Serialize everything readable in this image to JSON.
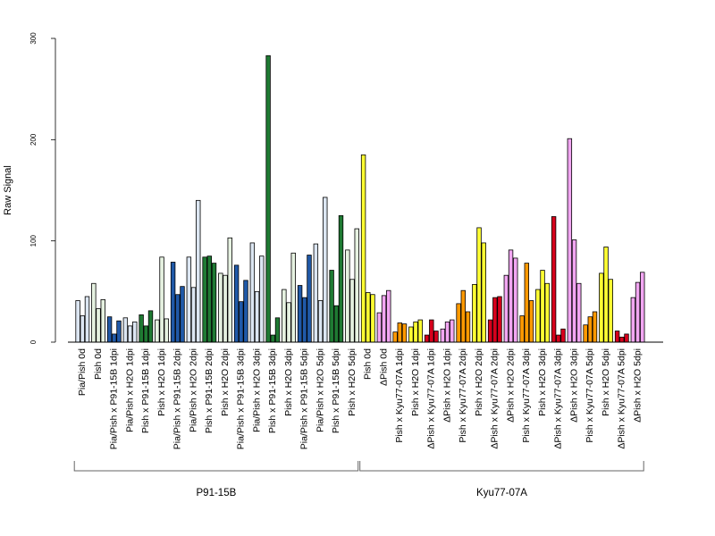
{
  "chart_data": {
    "type": "bar",
    "title": "",
    "xlabel": "",
    "ylabel": "Raw Signal",
    "ylim": [
      0,
      300
    ],
    "yticks": [
      0,
      100,
      200,
      300
    ],
    "grid": false,
    "legend": "none",
    "categories": [
      "Pia/Pish 0d",
      "Pish 0d",
      "Pia/Pish x P91-15B 1dpi",
      "Pia/Pish x H2O 1dpi",
      "Pish x P91-15B 1dpi",
      "Pish x H2O 1dpi",
      "Pia/Pish x P91-15B 2dpi",
      "Pia/Pish x H2O 2dpi",
      "Pish x P91-15B 2dpi",
      "Pish x H2O 2dpi",
      "Pia/Pish x P91-15B 3dpi",
      "Pia/Pish x H2O 3dpi",
      "Pish x P91-15B 3dpi",
      "Pish x H2O 3dpi",
      "Pia/Pish x P91-15B 5dpi",
      "Pia/Pish x H2O 5dpi",
      "Pish x P91-15B 5dpi",
      "Pish x H2O 5dpi",
      "Pish 0d",
      "ΔPish 0d",
      "Pish x Kyu77-07A 1dpi",
      "Pish x H2O 1dpi",
      "ΔPish x Kyu77-07A 1dpi",
      "ΔPish x H2O 1dpi",
      "Pish x Kyu77-07A 2dpi",
      "Pish x H2O 2dpi",
      "ΔPish x Kyu77-07A 2dpi",
      "ΔPish x H2O 2dpi",
      "Pish x Kyu77-07A 3dpi",
      "Pish x H2O 3dpi",
      "ΔPish x Kyu77-07A 3dpi",
      "ΔPish x H2O 3dpi",
      "Pish x Kyu77-07A 5dpi",
      "Pish x H2O 5dpi",
      "ΔPish x Kyu77-07A 5dpi",
      "ΔPish x H2O 5dpi"
    ],
    "values": [
      [
        41,
        26,
        45
      ],
      [
        58,
        33,
        42
      ],
      [
        25,
        8,
        21
      ],
      [
        24,
        16,
        20
      ],
      [
        27,
        16,
        31
      ],
      [
        22,
        84,
        23
      ],
      [
        79,
        47,
        55
      ],
      [
        84,
        54,
        140
      ],
      [
        84,
        85,
        78
      ],
      [
        68,
        66,
        103
      ],
      [
        76,
        40,
        61
      ],
      [
        98,
        50,
        85
      ],
      [
        283,
        7,
        24
      ],
      [
        52,
        39,
        88
      ],
      [
        56,
        44,
        86
      ],
      [
        97,
        41,
        143
      ],
      [
        71,
        36,
        125
      ],
      [
        91,
        62,
        112
      ],
      [
        185,
        49,
        47
      ],
      [
        29,
        46,
        51
      ],
      [
        10,
        19,
        18
      ],
      [
        15,
        20,
        22
      ],
      [
        7,
        22,
        11
      ],
      [
        13,
        20,
        22
      ],
      [
        38,
        51,
        30
      ],
      [
        57,
        113,
        98
      ],
      [
        22,
        44,
        45
      ],
      [
        66,
        91,
        83
      ],
      [
        26,
        78,
        41
      ],
      [
        52,
        71,
        58
      ],
      [
        124,
        7,
        13
      ],
      [
        201,
        101,
        58
      ],
      [
        17,
        25,
        30
      ],
      [
        68,
        94,
        62
      ],
      [
        11,
        5,
        8
      ],
      [
        44,
        59,
        69
      ]
    ],
    "colors": [
      "#dce6f2",
      "#e6f2e1",
      "#2059a8",
      "#dce6f2",
      "#1f7a33",
      "#e6f2e1",
      "#2059a8",
      "#dce6f2",
      "#1f7a33",
      "#e6f2e1",
      "#2059a8",
      "#dce6f2",
      "#1f7a33",
      "#e6f2e1",
      "#2059a8",
      "#dce6f2",
      "#1f7a33",
      "#e6f2e1",
      "#ffff33",
      "#f2a6f2",
      "#ff9900",
      "#ffff33",
      "#d7001c",
      "#f2a6f2",
      "#ff9900",
      "#ffff33",
      "#d7001c",
      "#f2a6f2",
      "#ff9900",
      "#ffff33",
      "#d7001c",
      "#f2a6f2",
      "#ff9900",
      "#ffff33",
      "#d7001c",
      "#f2a6f2"
    ],
    "groups": [
      {
        "label": "P91-15B",
        "from": 0,
        "to": 17
      },
      {
        "label": "Kyu77-07A",
        "from": 18,
        "to": 35
      }
    ]
  }
}
